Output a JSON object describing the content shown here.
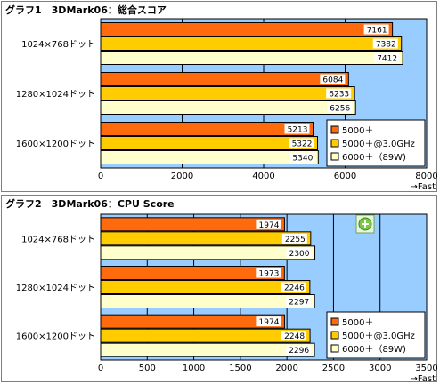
{
  "colors": {
    "series": [
      "#ff6a0d",
      "#ffcc00",
      "#ffffcc"
    ],
    "plot_bg": "#99ccff"
  },
  "fast_label": "→Fast",
  "icon": "green-plus-circle-icon",
  "chart_data": [
    {
      "type": "bar",
      "orientation": "horizontal",
      "title": "グラフ1　3DMark06：総合スコア",
      "categories": [
        "1024×768ドット",
        "1280×1024ドット",
        "1600×1200ドット"
      ],
      "series": [
        {
          "name": "5000＋",
          "values": [
            7161,
            6084,
            5213
          ]
        },
        {
          "name": "5000＋@3.0GHz",
          "values": [
            7382,
            6233,
            5322
          ]
        },
        {
          "name": "6000＋（89W)",
          "values": [
            7412,
            6256,
            5340
          ]
        }
      ],
      "xlim": [
        0,
        8000
      ],
      "ticks": [
        "0",
        "2000",
        "4000",
        "6000",
        "8000"
      ],
      "xlabel": "",
      "legend": "inside-bottom-right",
      "grid": true
    },
    {
      "type": "bar",
      "orientation": "horizontal",
      "title": "グラフ2　3DMark06：CPU Score",
      "categories": [
        "1024×768ドット",
        "1280×1024ドット",
        "1600×1200ドット"
      ],
      "series": [
        {
          "name": "5000＋",
          "values": [
            1974,
            1973,
            1974
          ]
        },
        {
          "name": "5000＋@3.0GHz",
          "values": [
            2255,
            2246,
            2248
          ]
        },
        {
          "name": "6000＋（89W)",
          "values": [
            2300,
            2297,
            2296
          ]
        }
      ],
      "xlim": [
        0,
        3500
      ],
      "ticks": [
        "0",
        "500",
        "1000",
        "1500",
        "2000",
        "2500",
        "3000",
        "3500"
      ],
      "xlabel": "",
      "legend": "inside-bottom-right",
      "grid": true
    }
  ]
}
